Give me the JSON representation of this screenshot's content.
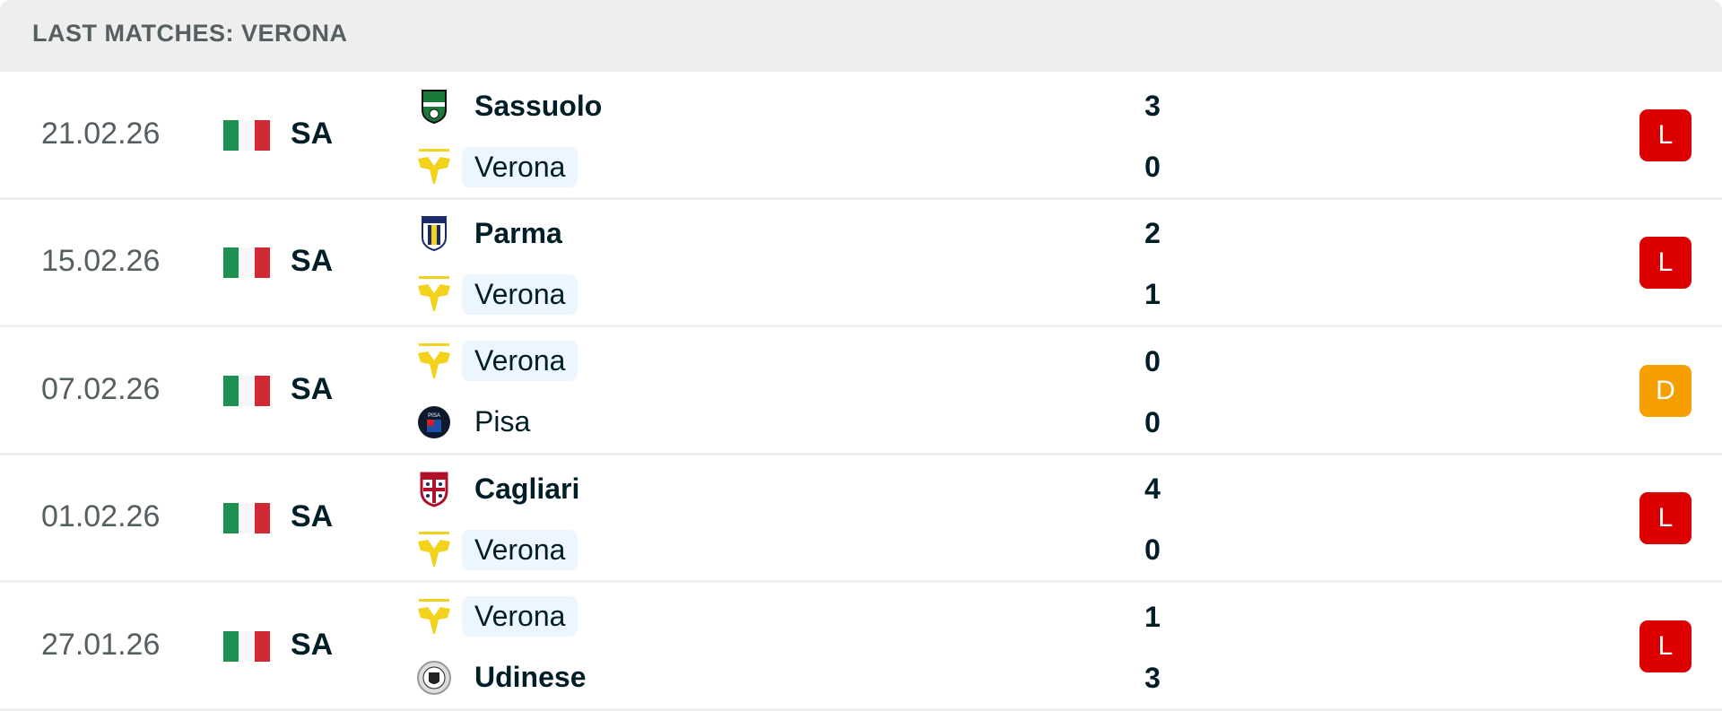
{
  "header": {
    "title": "LAST MATCHES: VERONA"
  },
  "colors": {
    "loss": "#dc0000",
    "draw": "#f5a000",
    "highlight": "#edf5fe"
  },
  "matches": [
    {
      "date": "21.02.26",
      "league": "SA",
      "home": {
        "name": "Sassuolo",
        "score": "3",
        "logo": "sassuolo-logo"
      },
      "away": {
        "name": "Verona",
        "score": "0",
        "logo": "verona-logo"
      },
      "result": "L"
    },
    {
      "date": "15.02.26",
      "league": "SA",
      "home": {
        "name": "Parma",
        "score": "2",
        "logo": "parma-logo"
      },
      "away": {
        "name": "Verona",
        "score": "1",
        "logo": "verona-logo"
      },
      "result": "L"
    },
    {
      "date": "07.02.26",
      "league": "SA",
      "home": {
        "name": "Verona",
        "score": "0",
        "logo": "verona-logo"
      },
      "away": {
        "name": "Pisa",
        "score": "0",
        "logo": "pisa-logo"
      },
      "result": "D"
    },
    {
      "date": "01.02.26",
      "league": "SA",
      "home": {
        "name": "Cagliari",
        "score": "4",
        "logo": "cagliari-logo"
      },
      "away": {
        "name": "Verona",
        "score": "0",
        "logo": "verona-logo"
      },
      "result": "L"
    },
    {
      "date": "27.01.26",
      "league": "SA",
      "home": {
        "name": "Verona",
        "score": "1",
        "logo": "verona-logo"
      },
      "away": {
        "name": "Udinese",
        "score": "3",
        "logo": "udinese-logo"
      },
      "result": "L"
    }
  ]
}
